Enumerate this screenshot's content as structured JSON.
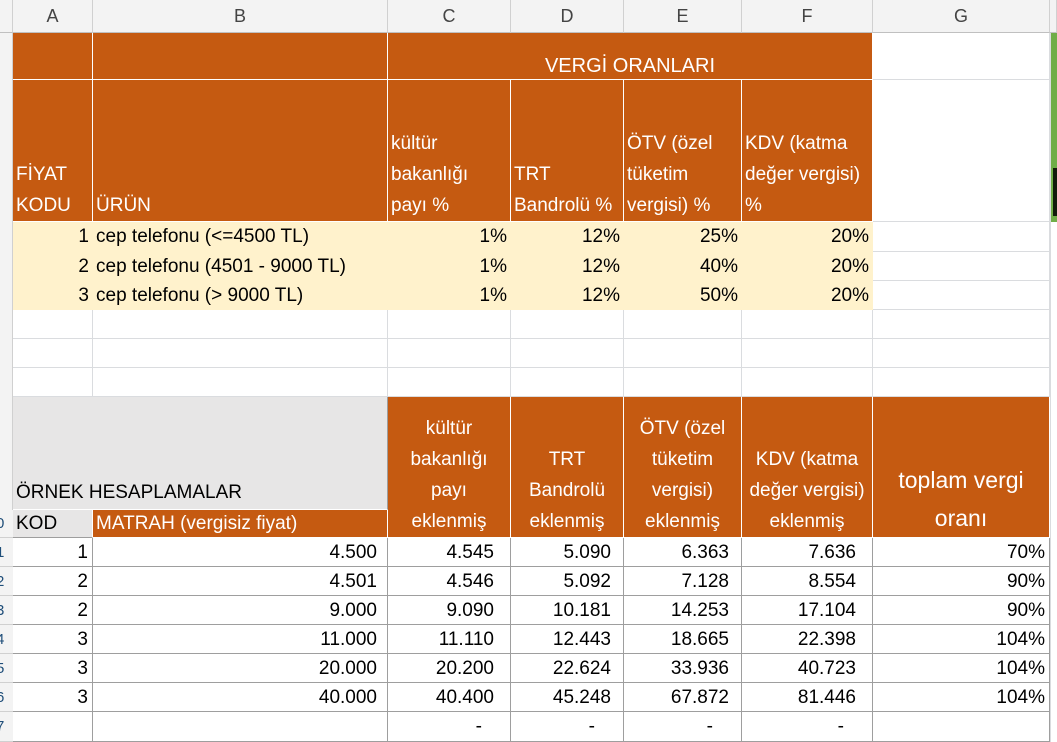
{
  "columns": [
    "A",
    "B",
    "C",
    "D",
    "E",
    "F",
    "G"
  ],
  "row_numbers": [
    "0",
    "1",
    "2",
    "3",
    "4",
    "5",
    "6",
    "7"
  ],
  "table1": {
    "group_header": "VERGİ ORANLARI",
    "headers": {
      "kod": "FİYAT KODU",
      "urun": "ÜRÜN",
      "kultur": "kültür bakanlığı payı %",
      "trt": "TRT Bandrolü %",
      "otv": "ÖTV (özel tüketim vergisi) %",
      "kdv": "KDV (katma değer vergisi) %"
    },
    "rows": [
      {
        "kod": "1",
        "urun": "cep telefonu (<=4500 TL)",
        "kultur": "1%",
        "trt": "12%",
        "otv": "25%",
        "kdv": "20%"
      },
      {
        "kod": "2",
        "urun": "cep telefonu (4501 - 9000 TL)",
        "kultur": "1%",
        "trt": "12%",
        "otv": "40%",
        "kdv": "20%"
      },
      {
        "kod": "3",
        "urun": "cep telefonu (> 9000 TL)",
        "kultur": "1%",
        "trt": "12%",
        "otv": "50%",
        "kdv": "20%"
      }
    ]
  },
  "table2": {
    "title": "ÖRNEK HESAPLAMALAR",
    "headers": {
      "kod": "KOD",
      "matrah": "MATRAH (vergisiz fiyat)",
      "kultur": "kültür bakanlığı payı eklenmiş",
      "trt": "TRT Bandrolü eklenmiş",
      "otv": "ÖTV (özel tüketim vergisi) eklenmiş",
      "kdv": "KDV (katma değer vergisi) eklenmiş",
      "toplam": "toplam vergi oranı"
    },
    "rows": [
      {
        "kod": "1",
        "matrah": "4.500",
        "kultur": "4.545",
        "trt": "5.090",
        "otv": "6.363",
        "kdv": "7.636",
        "toplam": "70%"
      },
      {
        "kod": "2",
        "matrah": "4.501",
        "kultur": "4.546",
        "trt": "5.092",
        "otv": "7.128",
        "kdv": "8.554",
        "toplam": "90%"
      },
      {
        "kod": "2",
        "matrah": "9.000",
        "kultur": "9.090",
        "trt": "10.181",
        "otv": "14.253",
        "kdv": "17.104",
        "toplam": "90%"
      },
      {
        "kod": "3",
        "matrah": "11.000",
        "kultur": "11.110",
        "trt": "12.443",
        "otv": "18.665",
        "kdv": "22.398",
        "toplam": "104%"
      },
      {
        "kod": "3",
        "matrah": "20.000",
        "kultur": "20.200",
        "trt": "22.624",
        "otv": "33.936",
        "kdv": "40.723",
        "toplam": "104%"
      },
      {
        "kod": "3",
        "matrah": "40.000",
        "kultur": "40.400",
        "trt": "45.248",
        "otv": "67.872",
        "kdv": "81.446",
        "toplam": "104%"
      }
    ],
    "last_row": {
      "kultur": "-",
      "trt": "-",
      "otv": "-",
      "kdv": "-"
    }
  },
  "colors": {
    "orange": "#c55a11",
    "cream": "#fff2cc",
    "gray": "#e7e6e6",
    "header_bg": "#f3f3f3"
  }
}
